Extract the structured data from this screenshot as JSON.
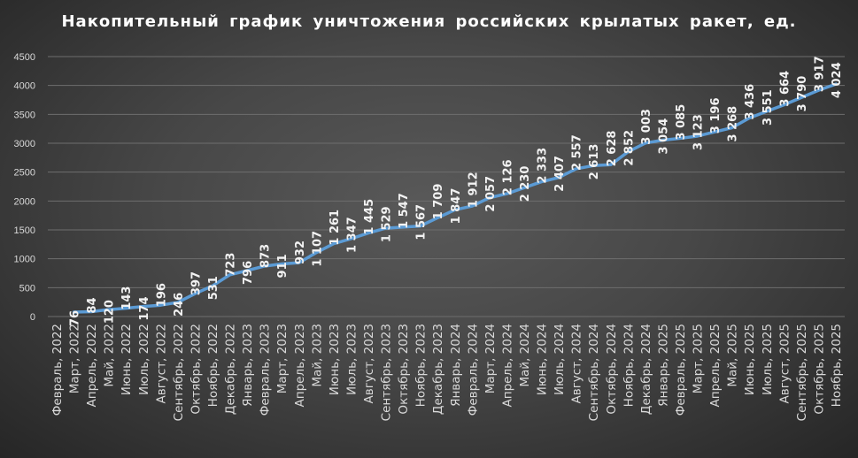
{
  "chart_data": {
    "type": "line",
    "title": "Накопительный график уничтожения российских крылатых ракет, ед.",
    "xlabel": "",
    "ylabel": "",
    "ylim": [
      0,
      4500
    ],
    "yticks": [
      "0",
      "500",
      "1000",
      "1500",
      "2000",
      "2500",
      "3000",
      "3500",
      "4000",
      "4500"
    ],
    "grid": true,
    "legend": "none",
    "line_color": "#5b9bd5",
    "categories": [
      "Февраль, 2022",
      "Март, 2022",
      "Апрель, 2022",
      "Май, 2022",
      "Июнь, 2022",
      "Июль, 2022",
      "Август, 2022",
      "Сентябрь, 2022",
      "Октябрь, 2022",
      "Ноябрь, 2022",
      "Декабрь, 2022",
      "Январь, 2023",
      "Февраль, 2023",
      "Март, 2023",
      "Апрель, 2023",
      "Май, 2023",
      "Июнь, 2023",
      "Июль, 2023",
      "Август, 2023",
      "Сентябрь, 2023",
      "Октябрь, 2023",
      "Ноябрь, 2023",
      "Декабрь, 2023",
      "Январь, 2024",
      "Февраль, 2024",
      "Март, 2024",
      "Апрель, 2024",
      "Май, 2024",
      "Июнь, 2024",
      "Июль, 2024",
      "Август, 2024",
      "Сентябрь, 2024",
      "Октябрь, 2024",
      "Ноябрь, 2024",
      "Декабрь, 2024",
      "Январь, 2025",
      "Февраль, 2025",
      "Март, 2025",
      "Апрель, 2025",
      "Май, 2025",
      "Июнь, 2025",
      "Июль, 2025",
      "Август, 2025",
      "Сентябрь, 2025",
      "Октябрь, 2025",
      "Ноябрь, 2025"
    ],
    "values": [
      null,
      76,
      84,
      120,
      143,
      174,
      196,
      246,
      397,
      531,
      723,
      796,
      873,
      911,
      932,
      1107,
      1261,
      1347,
      1445,
      1529,
      1547,
      1567,
      1709,
      1847,
      1912,
      2057,
      2126,
      2230,
      2333,
      2407,
      2557,
      2613,
      2628,
      2852,
      3003,
      3054,
      3085,
      3123,
      3196,
      3268,
      3436,
      3551,
      3664,
      3790,
      3917,
      4024
    ]
  }
}
